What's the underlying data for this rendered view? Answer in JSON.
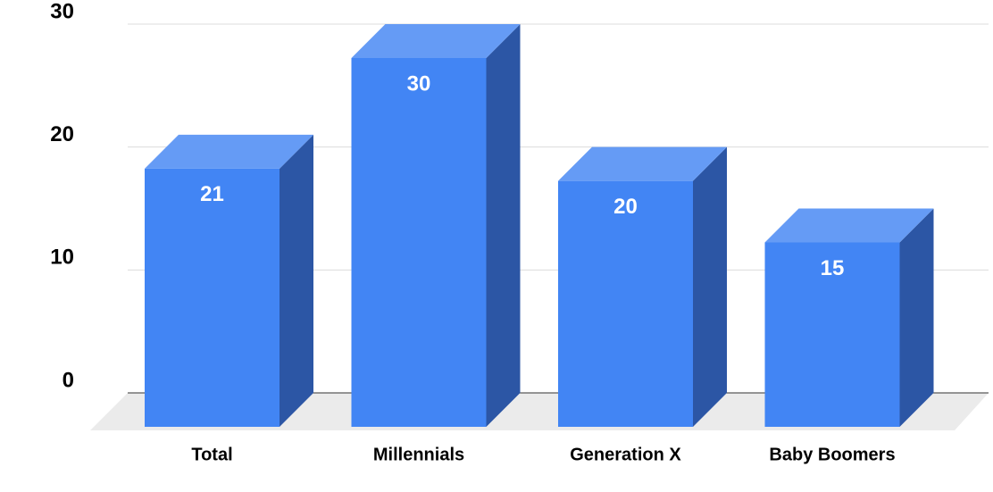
{
  "chart_data": {
    "type": "bar",
    "categories": [
      "Total",
      "Millennials",
      "Generation X",
      "Baby Boomers"
    ],
    "values": [
      21,
      30,
      20,
      15
    ],
    "color": "#4285f4",
    "ylim": [
      0,
      30
    ],
    "yticks": [
      0,
      10,
      20,
      30
    ],
    "grid": true
  }
}
